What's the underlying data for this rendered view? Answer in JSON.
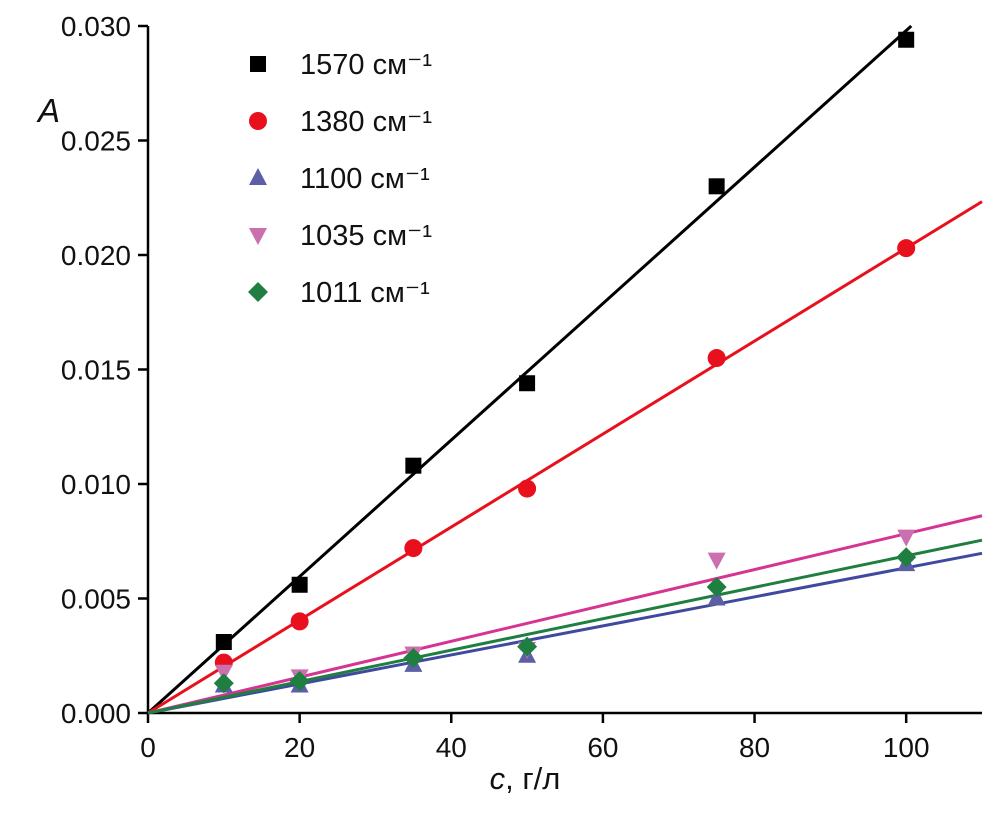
{
  "chart_data": {
    "type": "scatter",
    "title": "",
    "xlabel": "c, г/л",
    "xlabel_italic_prefix": "c",
    "xlabel_rest": ", г/л",
    "ylabel": "A",
    "xlim": [
      0,
      110
    ],
    "ylim": [
      0,
      0.03
    ],
    "xticks": [
      0,
      20,
      40,
      60,
      80,
      100
    ],
    "yticks": [
      0.0,
      0.005,
      0.01,
      0.015,
      0.02,
      0.025,
      0.03
    ],
    "ytick_decimals": 3,
    "grid": false,
    "legend_position": "top-left",
    "x": [
      10,
      20,
      35,
      50,
      75,
      100
    ],
    "series": [
      {
        "name": "1570 см⁻¹",
        "marker": "square",
        "color": "#000000",
        "line_color": "#000000",
        "values": [
          0.0031,
          0.0056,
          0.0108,
          0.0144,
          0.023,
          0.0294
        ],
        "fit_slope": 0.000298
      },
      {
        "name": "1380 см⁻¹",
        "marker": "circle",
        "color": "#e8101c",
        "line_color": "#e8101c",
        "values": [
          0.0022,
          0.004,
          0.0072,
          0.0098,
          0.0155,
          0.0203
        ],
        "fit_slope": 0.000203
      },
      {
        "name": "1100 см⁻¹",
        "marker": "triangle-up",
        "color": "#5c5ea6",
        "line_color": "#3f4a9f",
        "values": [
          0.0012,
          0.0012,
          0.0021,
          0.0025,
          0.005,
          0.0065
        ],
        "fit_slope": 6.34e-05
      },
      {
        "name": "1035 см⁻¹",
        "marker": "triangle-down",
        "color": "#cc6fae",
        "line_color": "#d63493",
        "values": [
          0.0018,
          0.0016,
          0.0026,
          0.0028,
          0.0067,
          0.0077
        ],
        "fit_slope": 7.83e-05
      },
      {
        "name": "1011 см⁻¹",
        "marker": "diamond",
        "color": "#1e7f41",
        "line_color": "#1e7f41",
        "values": [
          0.0013,
          0.0014,
          0.0024,
          0.0029,
          0.0055,
          0.0068
        ],
        "fit_slope": 6.86e-05
      }
    ]
  }
}
